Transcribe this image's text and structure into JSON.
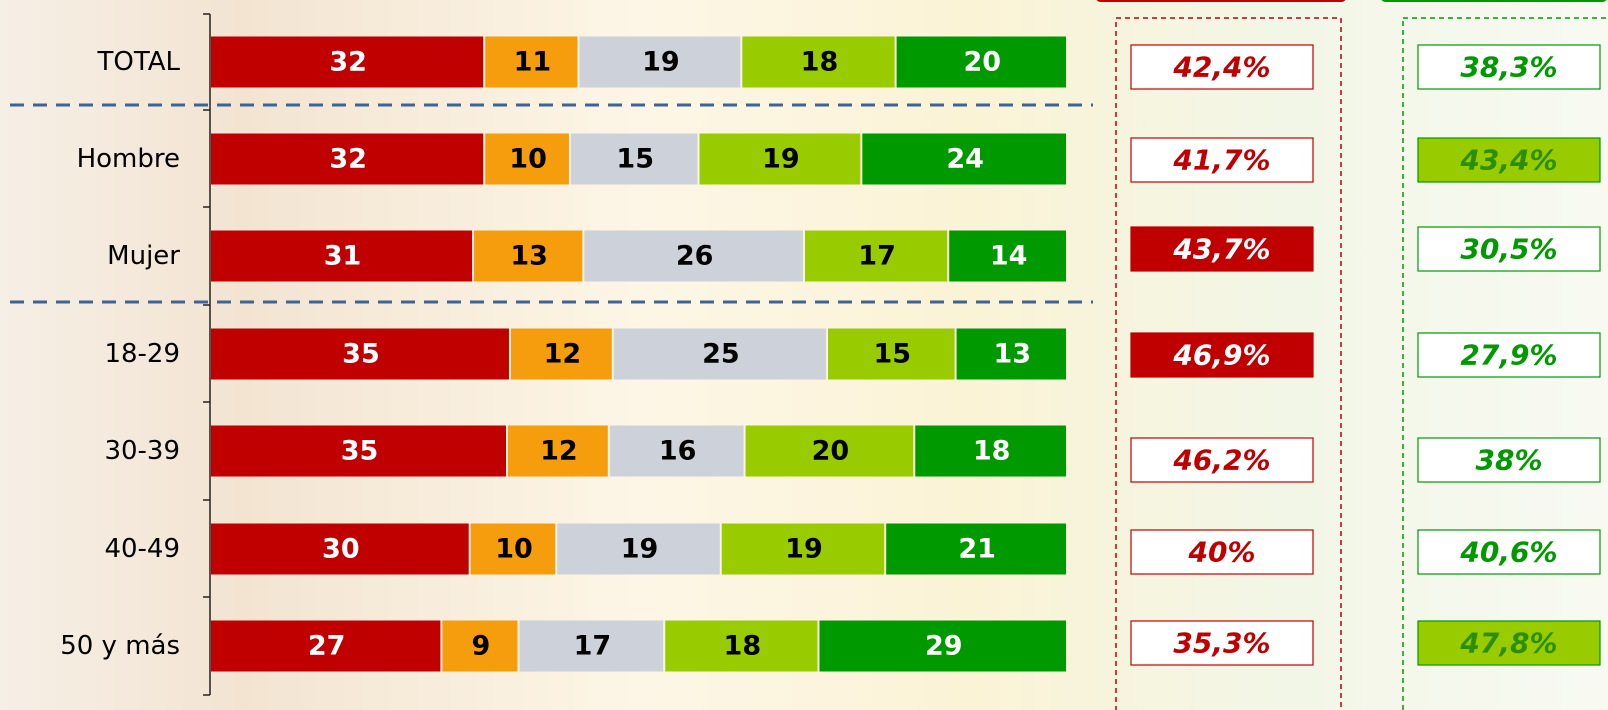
{
  "chart_data": {
    "type": "bar",
    "orientation": "horizontal",
    "stacked": true,
    "categories": [
      "TOTAL",
      "Hombre",
      "Mujer",
      "18-29",
      "30-39",
      "40-49",
      "50 y más"
    ],
    "series": [
      {
        "color": "#c00000",
        "label_color": "#ffffff",
        "values": [
          32,
          32,
          31,
          35,
          35,
          30,
          27
        ]
      },
      {
        "color": "#f59d0c",
        "label_color": "#000000",
        "values": [
          11,
          10,
          13,
          12,
          12,
          10,
          9
        ]
      },
      {
        "color": "#ccd1da",
        "label_color": "#000000",
        "values": [
          19,
          15,
          26,
          25,
          16,
          19,
          17
        ]
      },
      {
        "color": "#99cc00",
        "label_color": "#000000",
        "values": [
          18,
          19,
          17,
          15,
          20,
          19,
          18
        ]
      },
      {
        "color": "#009900",
        "label_color": "#ffffff",
        "values": [
          20,
          24,
          14,
          13,
          18,
          21,
          29
        ]
      }
    ],
    "indicators": [
      {
        "color": "#c00000",
        "highlight_fill": "#c00000",
        "highlight_text": "#ffffff",
        "values": [
          42.4,
          41.7,
          43.7,
          46.9,
          46.2,
          40,
          35.3
        ],
        "value_labels": [
          "42,4%",
          "41,7%",
          "43,7%",
          "46,9%",
          "46,2%",
          "40%",
          "35,3%"
        ],
        "highlight": [
          false,
          false,
          true,
          true,
          false,
          false,
          false
        ]
      },
      {
        "color": "#009900",
        "highlight_fill": "#99cc00",
        "highlight_text": "#2d8f00",
        "values": [
          38.3,
          43.4,
          30.5,
          27.9,
          38,
          40.6,
          47.8
        ],
        "value_labels": [
          "38,3%",
          "43,4%",
          "30,5%",
          "27,9%",
          "38%",
          "40,6%",
          "47,8%"
        ],
        "highlight": [
          false,
          true,
          false,
          false,
          false,
          false,
          true
        ]
      }
    ]
  }
}
